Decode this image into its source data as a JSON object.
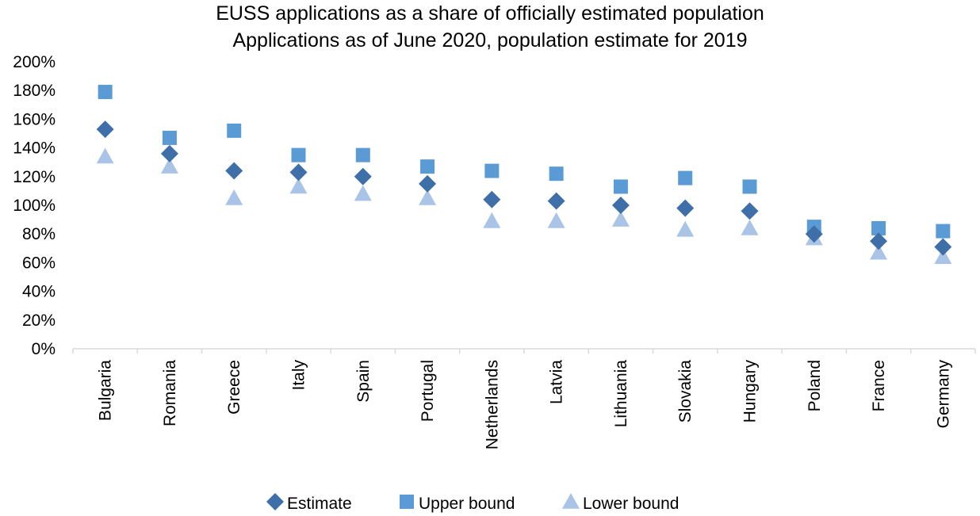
{
  "chart_data": {
    "type": "scatter",
    "title": "EUSS applications as a share of officially estimated population",
    "subtitle": "Applications as of June 2020, population estimate for 2019",
    "categories": [
      "Bulgaria",
      "Romania",
      "Greece",
      "Italy",
      "Spain",
      "Portugal",
      "Netherlands",
      "Latvia",
      "Lithuania",
      "Slovakia",
      "Hungary",
      "Poland",
      "France",
      "Germany"
    ],
    "series": [
      {
        "name": "Estimate",
        "marker": "diamond",
        "color": "#3F6FA8",
        "values": [
          153,
          136,
          124,
          123,
          120,
          115,
          104,
          103,
          100,
          98,
          96,
          80,
          75,
          71
        ]
      },
      {
        "name": "Upper bound",
        "marker": "square",
        "color": "#5B9BD5",
        "values": [
          179,
          147,
          152,
          135,
          135,
          127,
          124,
          122,
          113,
          119,
          113,
          85,
          84,
          82
        ]
      },
      {
        "name": "Lower bound",
        "marker": "triangle",
        "color": "#A9C4E6",
        "values": [
          134,
          127,
          105,
          113,
          108,
          105,
          89,
          89,
          90,
          83,
          84,
          77,
          67,
          64
        ]
      }
    ],
    "yticks": [
      "0%",
      "20%",
      "40%",
      "60%",
      "80%",
      "100%",
      "120%",
      "140%",
      "160%",
      "180%",
      "200%"
    ],
    "ylim": [
      0,
      200
    ],
    "grid": false,
    "legend_position": "bottom"
  }
}
